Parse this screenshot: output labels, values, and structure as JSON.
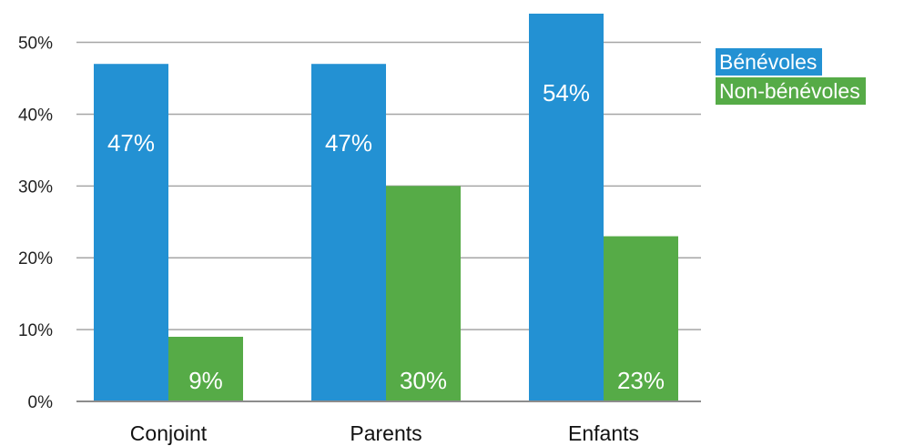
{
  "colors": {
    "benevoles": "#2391d3",
    "non_benevoles": "#56ab47",
    "grid": "#a6a6a6",
    "axis": "#8c8c8c"
  },
  "chart_data": {
    "type": "bar",
    "categories": [
      "Conjoint",
      "Parents",
      "Enfants"
    ],
    "series": [
      {
        "name": "Bénévoles",
        "values": [
          47,
          47,
          54
        ],
        "labels": [
          "47%",
          "47%",
          "54%"
        ]
      },
      {
        "name": "Non-bénévoles",
        "values": [
          9,
          30,
          23
        ],
        "labels": [
          "9%",
          "30%",
          "23%"
        ]
      }
    ],
    "y_ticks": [
      "0%",
      "10%",
      "20%",
      "30%",
      "40%",
      "50%"
    ],
    "ylim": [
      0,
      54
    ],
    "grid": true,
    "legend_position": "right"
  }
}
